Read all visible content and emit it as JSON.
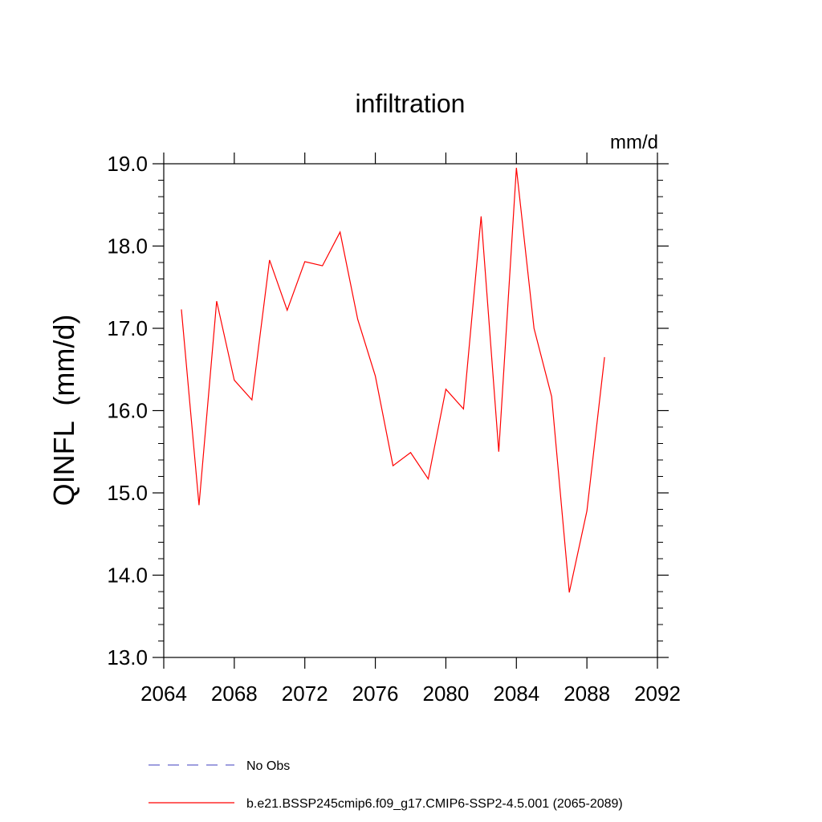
{
  "chart_data": {
    "type": "line",
    "title": "infiltration",
    "units": "mm/d",
    "ylabel": "QINFL  (mm/d)",
    "xlabel": "",
    "xlim": [
      2064,
      2092
    ],
    "ylim": [
      13.0,
      19.0
    ],
    "x_ticks": [
      2064,
      2068,
      2072,
      2076,
      2080,
      2084,
      2088,
      2092
    ],
    "x_tick_labels": [
      "2064",
      "2068",
      "2072",
      "2076",
      "2080",
      "2084",
      "2088",
      "2092"
    ],
    "y_ticks": [
      13.0,
      14.0,
      15.0,
      16.0,
      17.0,
      18.0,
      19.0
    ],
    "y_tick_labels": [
      "13.0",
      "14.0",
      "15.0",
      "16.0",
      "17.0",
      "18.0",
      "19.0"
    ],
    "grid": false,
    "legend_position": "bottom",
    "series": [
      {
        "name": "b.e21.BSSP245cmip6.f09_g17.CMIP6-SSP2-4.5.001 (2065-2089)",
        "color": "#ff0000",
        "dash": "solid",
        "x": [
          2065,
          2066,
          2067,
          2068,
          2069,
          2070,
          2071,
          2072,
          2073,
          2074,
          2075,
          2076,
          2077,
          2078,
          2079,
          2080,
          2081,
          2082,
          2083,
          2084,
          2085,
          2086,
          2087,
          2088,
          2089
        ],
        "values": [
          17.23,
          14.85,
          17.33,
          16.37,
          16.13,
          17.83,
          17.22,
          17.81,
          17.76,
          18.17,
          17.11,
          16.42,
          15.33,
          15.49,
          15.17,
          16.26,
          16.02,
          18.36,
          15.5,
          18.95,
          17.0,
          16.17,
          13.79,
          14.78,
          16.65
        ]
      },
      {
        "name": "No Obs",
        "color": "#6666cc",
        "dash": "dashed",
        "x": [],
        "values": []
      }
    ]
  }
}
